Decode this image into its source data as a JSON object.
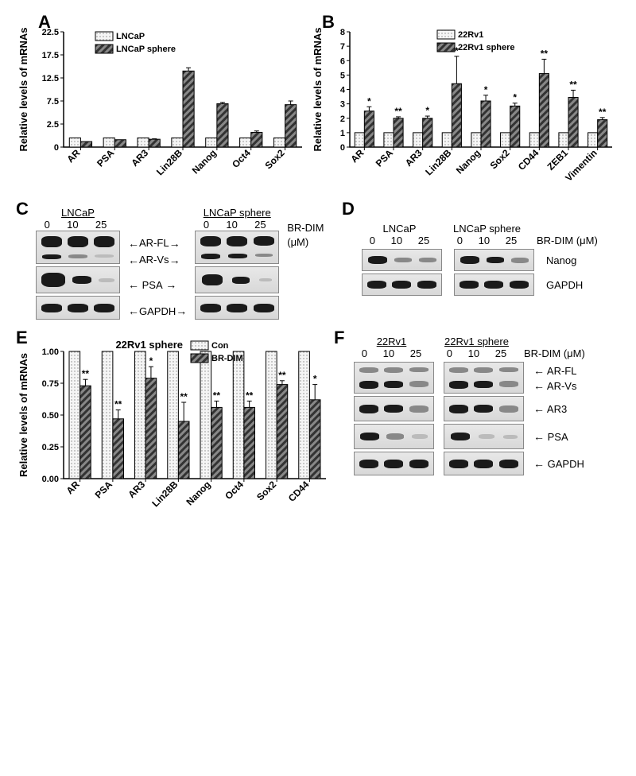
{
  "panels": {
    "A": {
      "label": "A",
      "ylabel": "Relative levels of mRNAs",
      "yticks": [
        0,
        2.5,
        7.5,
        12.5,
        17.5,
        22.5
      ],
      "legend": [
        "LNCaP",
        "LNCaP sphere"
      ],
      "categories": [
        "AR",
        "PSA",
        "AR3",
        "Lin28B",
        "Nanog",
        "Oct4",
        "Sox2"
      ],
      "series1": [
        1.0,
        1.0,
        1.0,
        1.0,
        1.0,
        1.0,
        1.0
      ],
      "series2": [
        0.6,
        0.8,
        0.85,
        14.0,
        6.9,
        1.6,
        6.7
      ],
      "errors2": [
        0.0,
        0.0,
        0.05,
        0.7,
        0.3,
        0.15,
        0.8
      ],
      "colors": {
        "bg": "#ffffff",
        "bar1": "#f0f0f0",
        "bar2": "#606060",
        "axis": "#000000"
      }
    },
    "B": {
      "label": "B",
      "ylabel": "Relative levels of mRNAs",
      "yticks": [
        0,
        1,
        2,
        3,
        4,
        5,
        6,
        7,
        8
      ],
      "legend": [
        "22Rv1",
        "22Rv1 sphere"
      ],
      "categories": [
        "AR",
        "PSA",
        "AR3",
        "Lin28B",
        "Nanog",
        "Sox2",
        "CD44",
        "ZEB1",
        "Vimentin"
      ],
      "series1": [
        1,
        1,
        1,
        1,
        1,
        1,
        1,
        1,
        1
      ],
      "series2": [
        2.5,
        2.0,
        2.0,
        4.4,
        3.2,
        2.85,
        5.1,
        3.45,
        1.9
      ],
      "errors2": [
        0.3,
        0.1,
        0.15,
        1.9,
        0.4,
        0.2,
        1.0,
        0.5,
        0.15
      ],
      "sig": [
        "*",
        "**",
        "*",
        "*",
        "*",
        "*",
        "**",
        "**",
        "**"
      ],
      "colors": {
        "bg": "#ffffff",
        "bar1": "#f0f0f0",
        "bar2": "#606060",
        "axis": "#000000"
      }
    },
    "C": {
      "label": "C",
      "header1": "LNCaP",
      "header2": "LNCaP sphere",
      "concentrations": [
        "0",
        "10",
        "25"
      ],
      "unit": "BR-DIM (μM)",
      "rows": [
        "AR-FL",
        "AR-Vs",
        "PSA",
        "GAPDH"
      ]
    },
    "D": {
      "label": "D",
      "header1": "LNCaP",
      "header2": "LNCaP sphere",
      "concentrations": [
        "0",
        "10",
        "25"
      ],
      "unit": "BR-DIM (μM)",
      "rows": [
        "Nanog",
        "GAPDH"
      ]
    },
    "E": {
      "label": "E",
      "ylabel": "Relative levels of mRNAs",
      "title": "22Rv1 sphere",
      "yticks": [
        0.0,
        0.25,
        0.5,
        0.75,
        1.0
      ],
      "legend": [
        "Con",
        "BR-DIM"
      ],
      "categories": [
        "AR",
        "PSA",
        "AR3",
        "Lin28B",
        "Nanog",
        "Oct4",
        "Sox2",
        "CD44"
      ],
      "series1": [
        1,
        1,
        1,
        1,
        1,
        1,
        1,
        1
      ],
      "series2": [
        0.73,
        0.47,
        0.79,
        0.45,
        0.56,
        0.56,
        0.74,
        0.62
      ],
      "errors2": [
        0.05,
        0.07,
        0.09,
        0.15,
        0.05,
        0.05,
        0.03,
        0.12
      ],
      "sig": [
        "**",
        "**",
        "*",
        "**",
        "**",
        "**",
        "**",
        "*"
      ],
      "colors": {
        "bar1": "#e0e0e0",
        "bar2": "#606060"
      }
    },
    "F": {
      "label": "F",
      "header1": "22Rv1",
      "header2": "22Rv1 sphere",
      "concentrations": [
        "0",
        "10",
        "25"
      ],
      "unit": "BR-DIM (μM)",
      "rows": [
        "AR-FL",
        "AR-Vs",
        "AR3",
        "PSA",
        "GAPDH"
      ]
    }
  }
}
